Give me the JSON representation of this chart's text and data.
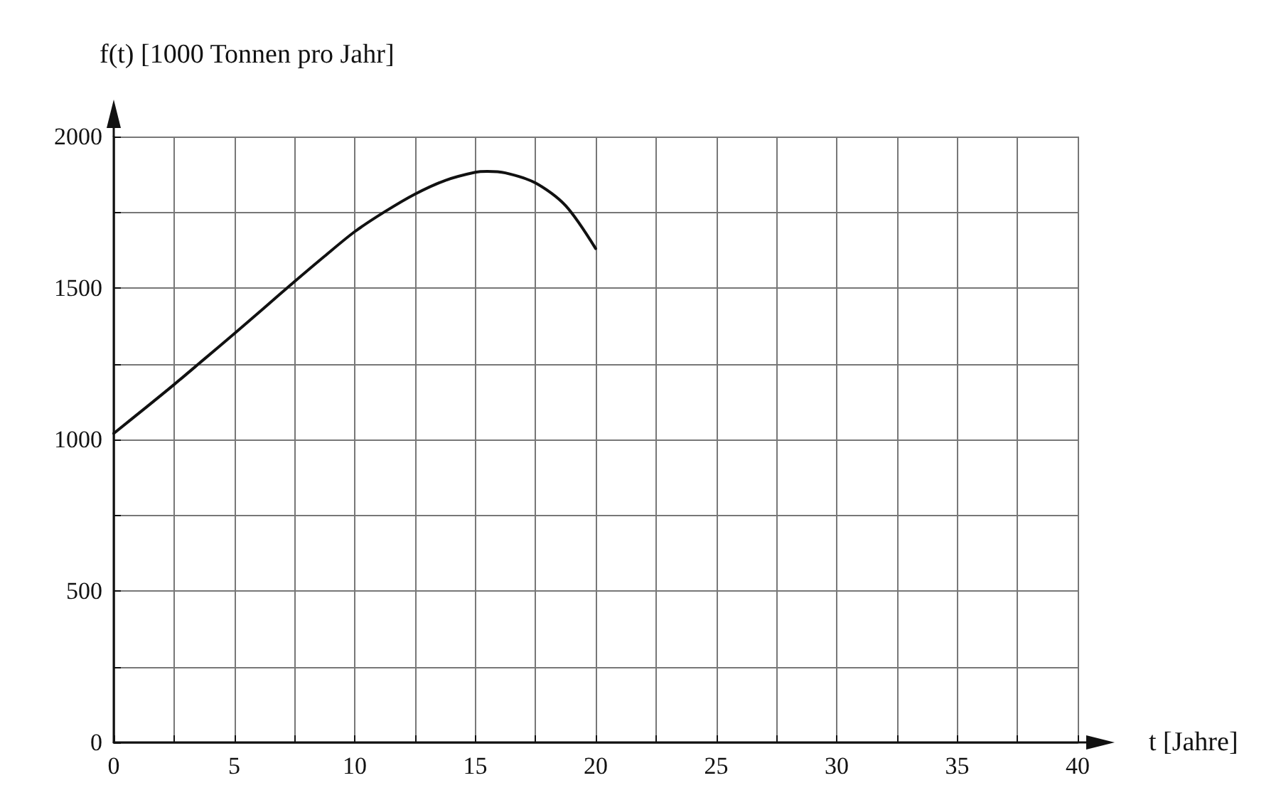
{
  "chart_data": {
    "type": "line",
    "xlabel": "t [Jahre]",
    "ylabel": "f(t) [1000 Tonnen pro Jahr]",
    "x": [
      0,
      1.25,
      2.5,
      3.75,
      5,
      6.25,
      7.5,
      8.75,
      10,
      11.25,
      12.5,
      13.75,
      15,
      15.5,
      16.25,
      17.5,
      18.75,
      20
    ],
    "series": [
      {
        "color": "#111111",
        "values": [
          1020,
          1100,
          1181,
          1265,
          1349,
          1435,
          1521,
          1605,
          1686,
          1752,
          1810,
          1855,
          1882,
          1885,
          1880,
          1847,
          1772,
          1630
        ]
      }
    ],
    "xlim": [
      0,
      40
    ],
    "ylim": [
      0,
      2000
    ],
    "xticks": [
      0,
      {
        "value": 2.5,
        "label": null
      },
      5,
      {
        "value": 7.5,
        "label": null
      },
      10,
      {
        "value": 12.5,
        "label": null
      },
      15,
      {
        "value": 17.5,
        "label": null
      },
      20,
      {
        "value": 22.5,
        "label": null
      },
      25,
      {
        "value": 27.5,
        "label": null
      },
      30,
      {
        "value": 32.5,
        "label": null
      },
      35,
      {
        "value": 37.5,
        "label": null
      },
      40
    ],
    "yticks": [
      0,
      {
        "value": 250,
        "label": null
      },
      500,
      {
        "value": 750,
        "label": null
      },
      1000,
      {
        "value": 1250,
        "label": null
      },
      1500,
      {
        "value": 1750,
        "label": null
      },
      2000
    ],
    "grid": true,
    "marker": "none",
    "line_style": "solid"
  }
}
